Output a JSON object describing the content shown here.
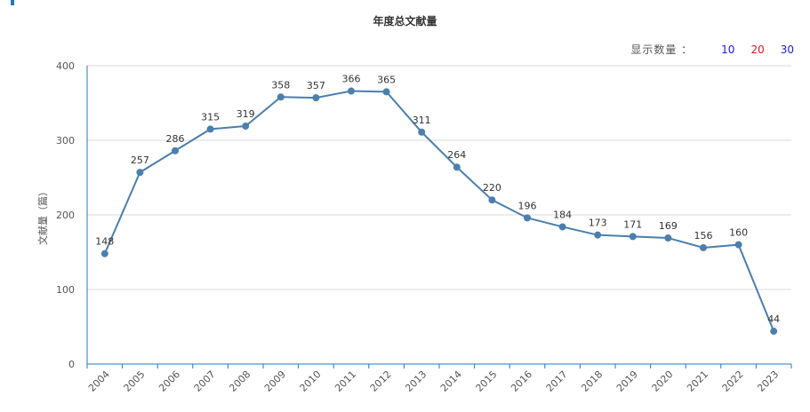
{
  "title": "年度总文献量",
  "count_selector": {
    "label": "显示数量 ：",
    "options": [
      "10",
      "20",
      "30"
    ]
  },
  "colors": {
    "line": "#4a7fae",
    "axis": "#1f78c8",
    "grid": "#d9d9d9"
  },
  "chart_data": {
    "type": "line",
    "title": "年度总文献量",
    "xlabel": "",
    "ylabel": "文献量（篇）",
    "ylim": [
      0,
      400
    ],
    "yticks": [
      0,
      100,
      200,
      300,
      400
    ],
    "grid": "horizontal",
    "categories": [
      "2004",
      "2005",
      "2006",
      "2007",
      "2008",
      "2009",
      "2010",
      "2011",
      "2012",
      "2013",
      "2014",
      "2015",
      "2016",
      "2017",
      "2018",
      "2019",
      "2020",
      "2021",
      "2022",
      "2023"
    ],
    "series": [
      {
        "values": [
          148,
          257,
          286,
          315,
          319,
          358,
          357,
          366,
          365,
          311,
          264,
          220,
          196,
          184,
          173,
          171,
          169,
          156,
          160,
          44
        ]
      }
    ]
  }
}
